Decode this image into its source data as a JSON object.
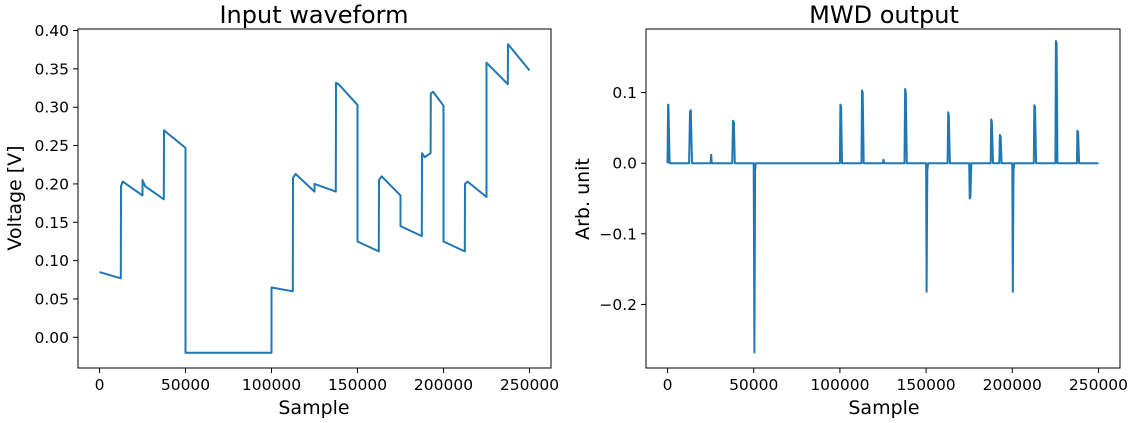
{
  "colors": {
    "series": "#1f77b4",
    "axes": "#000000",
    "background": "#ffffff"
  },
  "chart_data": [
    {
      "type": "line",
      "title": "Input waveform",
      "xlabel": "Sample",
      "ylabel": "Voltage [V]",
      "xlim": [
        -12500,
        262500
      ],
      "ylim": [
        -0.04,
        0.402
      ],
      "xticks": [
        0,
        50000,
        100000,
        150000,
        200000,
        250000
      ],
      "yticks": [
        0.0,
        0.05,
        0.1,
        0.15,
        0.2,
        0.25,
        0.3,
        0.35,
        0.4
      ],
      "xtick_labels": [
        "0",
        "50000",
        "100000",
        "150000",
        "200000",
        "250000"
      ],
      "ytick_labels": [
        "0.00",
        "0.05",
        "0.10",
        "0.15",
        "0.20",
        "0.25",
        "0.30",
        "0.35",
        "0.40"
      ],
      "grid": false,
      "series": [
        {
          "x": [
            0,
            12400,
            12500,
            13500,
            25000,
            25000,
            26500,
            37400,
            37500,
            39000,
            50000,
            50000,
            100000,
            100000,
            112400,
            112500,
            114000,
            125000,
            125000,
            137400,
            137500,
            139000,
            150000,
            150000,
            162400,
            162500,
            164000,
            175000,
            175000,
            187400,
            187500,
            189000,
            192500,
            192600,
            194000,
            200000,
            200000,
            212400,
            212500,
            214000,
            225000,
            225000,
            237400,
            237500,
            239000,
            250000
          ],
          "y": [
            0.085,
            0.077,
            0.197,
            0.203,
            0.185,
            0.205,
            0.197,
            0.18,
            0.27,
            0.267,
            0.247,
            -0.02,
            -0.02,
            0.065,
            0.06,
            0.208,
            0.213,
            0.19,
            0.2,
            0.19,
            0.332,
            0.33,
            0.303,
            0.125,
            0.112,
            0.205,
            0.21,
            0.185,
            0.145,
            0.132,
            0.24,
            0.235,
            0.24,
            0.318,
            0.32,
            0.302,
            0.125,
            0.112,
            0.2,
            0.203,
            0.183,
            0.358,
            0.33,
            0.382,
            0.378,
            0.348
          ]
        }
      ]
    },
    {
      "type": "line",
      "title": "MWD output",
      "xlabel": "Sample",
      "ylabel": "Arb. unit",
      "xlim": [
        -12500,
        262500
      ],
      "ylim": [
        -0.29,
        0.19
      ],
      "xticks": [
        0,
        50000,
        100000,
        150000,
        200000,
        250000
      ],
      "yticks": [
        -0.2,
        -0.1,
        0.0,
        0.1
      ],
      "xtick_labels": [
        "0",
        "50000",
        "100000",
        "150000",
        "200000",
        "250000"
      ],
      "ytick_labels": [
        "−0.2",
        "−0.1",
        "0.0",
        "0.1"
      ],
      "grid": false,
      "series": [
        {
          "x": [
            0,
            300,
            500,
            1200,
            1500,
            2000,
            12500,
            13000,
            13500,
            14200,
            14800,
            25000,
            25300,
            25600,
            37500,
            38000,
            38500,
            39000,
            50000,
            50400,
            50800,
            51200,
            100000,
            100300,
            100700,
            101200,
            112500,
            112800,
            113200,
            113800,
            122500,
            125000,
            125300,
            125700,
            137500,
            137800,
            138200,
            138800,
            150000,
            150300,
            150700,
            151200,
            162500,
            162800,
            163200,
            163800,
            175000,
            175300,
            175700,
            176200,
            187500,
            187800,
            188200,
            188800,
            192500,
            192800,
            193200,
            193800,
            200000,
            200300,
            200700,
            201200,
            212500,
            212800,
            213200,
            213800,
            225000,
            225300,
            225700,
            226200,
            237500,
            237800,
            238200,
            238800,
            250000
          ],
          "y": [
            0.0,
            0.083,
            0.083,
            0.0,
            0.0,
            0.0,
            0.0,
            0.073,
            0.075,
            0.0,
            0.0,
            0.0,
            0.012,
            0.0,
            0.0,
            0.06,
            0.058,
            0.0,
            0.0,
            -0.268,
            -0.01,
            0.0,
            0.0,
            0.083,
            0.08,
            0.0,
            0.0,
            0.103,
            0.1,
            0.0,
            0.0,
            0.0,
            0.005,
            0.0,
            0.0,
            0.105,
            0.1,
            0.0,
            0.0,
            -0.182,
            -0.01,
            0.0,
            0.0,
            0.072,
            0.068,
            0.0,
            0.0,
            -0.05,
            -0.048,
            0.0,
            0.0,
            0.062,
            0.058,
            0.0,
            0.0,
            0.04,
            0.038,
            0.0,
            0.0,
            -0.182,
            -0.01,
            0.0,
            0.0,
            0.082,
            0.08,
            0.0,
            0.0,
            0.173,
            0.17,
            0.0,
            0.0,
            0.046,
            0.044,
            0.0,
            0.0
          ]
        }
      ]
    }
  ]
}
